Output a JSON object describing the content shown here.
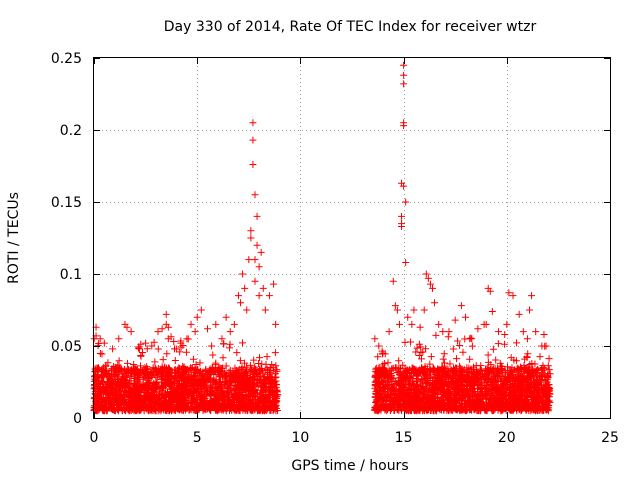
{
  "chart_data": {
    "type": "scatter",
    "title": "Day 330 of 2014, Rate Of TEC Index for receiver wtzr",
    "xlabel": "GPS time / hours",
    "ylabel": "ROTI / TECUs",
    "xlim": [
      0,
      25
    ],
    "ylim": [
      0,
      0.25
    ],
    "x_ticks": [
      0,
      5,
      10,
      15,
      20,
      25
    ],
    "x_tick_labels": [
      "0",
      "5",
      "10",
      "15",
      "20",
      "25"
    ],
    "y_ticks": [
      0,
      0.05,
      0.1,
      0.15,
      0.2,
      0.25
    ],
    "y_tick_labels": [
      "0",
      "0.05",
      "0.1",
      "0.15",
      "0.2",
      "0.25"
    ],
    "grid": true,
    "marker": "+",
    "color": "#ff0000",
    "series": [
      {
        "name": "ROTI (dense background band)",
        "segments": [
          {
            "x_start": 0.0,
            "x_end": 8.9,
            "y_min": 0.005,
            "y_max": 0.035
          },
          {
            "x_start": 13.6,
            "x_end": 22.1,
            "y_min": 0.005,
            "y_max": 0.035
          }
        ]
      },
      {
        "name": "ROTI (peaks)",
        "x": [
          0.1,
          0.1,
          0.3,
          0.5,
          0.9,
          1.2,
          1.5,
          1.6,
          1.8,
          2.2,
          2.5,
          2.8,
          3.1,
          3.3,
          3.5,
          3.5,
          3.6,
          3.6,
          3.9,
          4.2,
          4.5,
          4.7,
          4.9,
          5.0,
          5.2,
          5.5,
          5.7,
          5.9,
          6.2,
          6.4,
          6.6,
          6.8,
          7.0,
          7.1,
          7.2,
          7.3,
          7.4,
          7.5,
          7.6,
          7.6,
          7.7,
          7.7,
          7.7,
          7.8,
          7.8,
          7.8,
          7.9,
          7.9,
          8.0,
          8.0,
          8.1,
          8.2,
          8.3,
          8.5,
          8.7,
          8.8,
          13.8,
          14.0,
          14.3,
          14.5,
          14.6,
          14.7,
          14.8,
          14.9,
          14.9,
          14.9,
          14.9,
          15.0,
          15.0,
          15.0,
          15.0,
          15.0,
          15.0,
          15.1,
          15.1,
          15.2,
          15.4,
          15.5,
          15.8,
          16.0,
          16.1,
          16.2,
          16.3,
          16.4,
          16.5,
          16.7,
          16.9,
          17.2,
          17.5,
          17.8,
          18.0,
          18.3,
          18.6,
          18.9,
          19.0,
          19.1,
          19.2,
          19.3,
          19.6,
          19.9,
          20.0,
          20.1,
          20.3,
          20.6,
          20.8,
          21.0,
          21.1,
          21.2,
          21.4,
          21.7,
          21.9
        ],
        "y": [
          0.063,
          0.057,
          0.055,
          0.052,
          0.048,
          0.055,
          0.065,
          0.063,
          0.06,
          0.048,
          0.052,
          0.05,
          0.06,
          0.062,
          0.072,
          0.065,
          0.063,
          0.055,
          0.048,
          0.052,
          0.055,
          0.065,
          0.06,
          0.07,
          0.075,
          0.062,
          0.05,
          0.065,
          0.055,
          0.07,
          0.06,
          0.065,
          0.085,
          0.08,
          0.1,
          0.09,
          0.075,
          0.11,
          0.125,
          0.13,
          0.205,
          0.193,
          0.176,
          0.155,
          0.11,
          0.095,
          0.14,
          0.12,
          0.105,
          0.085,
          0.115,
          0.09,
          0.075,
          0.085,
          0.093,
          0.065,
          0.05,
          0.045,
          0.06,
          0.095,
          0.078,
          0.075,
          0.065,
          0.135,
          0.133,
          0.14,
          0.163,
          0.245,
          0.238,
          0.232,
          0.205,
          0.203,
          0.161,
          0.15,
          0.108,
          0.07,
          0.065,
          0.075,
          0.063,
          0.075,
          0.1,
          0.097,
          0.093,
          0.09,
          0.08,
          0.065,
          0.06,
          0.06,
          0.068,
          0.078,
          0.07,
          0.055,
          0.062,
          0.065,
          0.065,
          0.09,
          0.088,
          0.074,
          0.06,
          0.058,
          0.065,
          0.087,
          0.085,
          0.072,
          0.06,
          0.055,
          0.075,
          0.085,
          0.06,
          0.05,
          0.05
        ]
      }
    ]
  }
}
